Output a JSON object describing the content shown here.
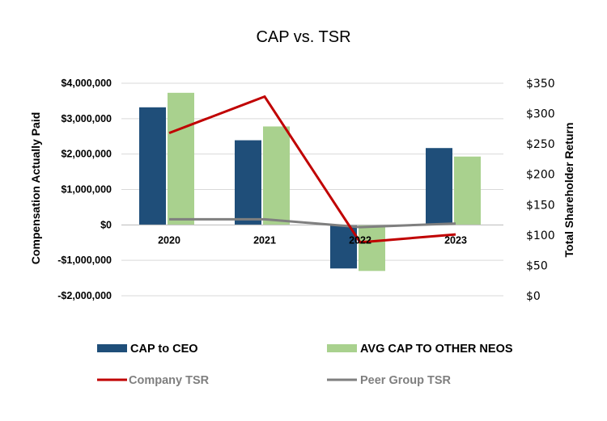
{
  "chart_data": {
    "type": "bar",
    "title": "CAP vs. TSR",
    "categories": [
      "2020",
      "2021",
      "2022",
      "2023"
    ],
    "ylabel": "Compensation Actually Paid",
    "y2label": "Total Shareholder Return",
    "ylim": [
      -2000000,
      4000000
    ],
    "y2lim": [
      0,
      350
    ],
    "y_ticks": [
      4000000,
      3000000,
      2000000,
      1000000,
      0,
      -1000000,
      -2000000
    ],
    "y_tick_labels": [
      "$4,000,000",
      "$3,000,000",
      "$2,000,000",
      "$1,000,000",
      "$0",
      "-$1,000,000",
      "-$2,000,000"
    ],
    "y2_ticks": [
      350,
      300,
      250,
      200,
      150,
      100,
      50,
      0
    ],
    "y2_tick_labels": [
      "$350",
      "$300",
      "$250",
      "$200",
      "$150",
      "$100",
      "$50",
      "$0"
    ],
    "grid": true,
    "legend_position": "bottom",
    "bar_series": [
      {
        "name": "CAP to CEO",
        "color": "#1f4e79",
        "values": [
          3320000,
          2390000,
          -1230000,
          2170000
        ]
      },
      {
        "name": "AVG CAP TO OTHER NEOS",
        "color": "#a9d18e",
        "values": [
          3730000,
          2780000,
          -1300000,
          1930000
        ]
      }
    ],
    "line_series": [
      {
        "name": "Company TSR",
        "color": "#c00000",
        "values": [
          268,
          328,
          88,
          101
        ]
      },
      {
        "name": "Peer Group TSR",
        "color": "#7f7f7f",
        "values": [
          126,
          126,
          113,
          119
        ]
      }
    ]
  }
}
